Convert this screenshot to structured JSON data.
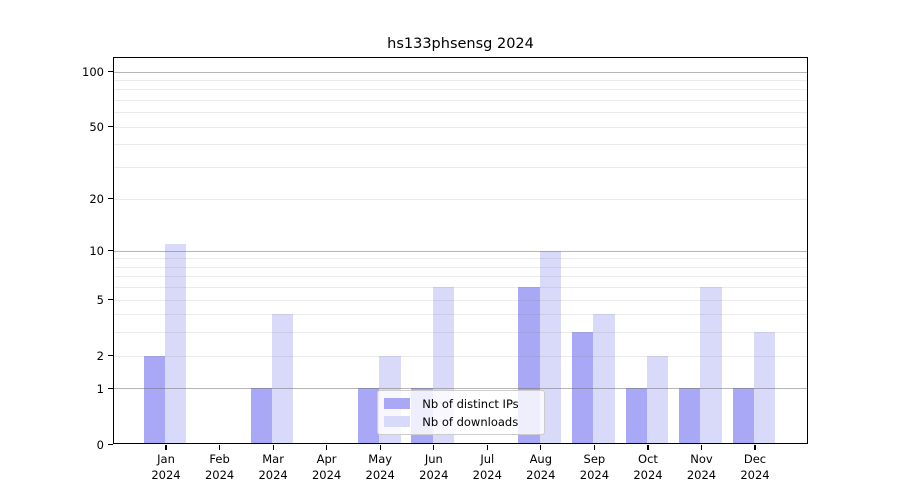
{
  "title": "hs133phsensg 2024",
  "colors": {
    "ips_bar": "#a8a8f6",
    "downloads_bar": "#d9d9fa",
    "grid_major": "#b2b2b2",
    "grid_minor": "#e9e9e9",
    "axis": "#000000",
    "legend_border": "#cccccc",
    "background": "#ffffff"
  },
  "legend": {
    "items": [
      {
        "id": "distinct-ips",
        "label": "Nb of distinct IPs"
      },
      {
        "id": "downloads",
        "label": "Nb of downloads"
      }
    ]
  },
  "y_axis": {
    "tick_labels": [
      "100",
      "50",
      "20",
      "10",
      "5",
      "2",
      "1",
      "0"
    ],
    "tick_values": [
      100,
      50,
      20,
      10,
      5,
      2,
      1,
      0
    ],
    "major_values": [
      1,
      10,
      100
    ],
    "minor_values": [
      3,
      4,
      6,
      7,
      8,
      9,
      30,
      40,
      60,
      70,
      80,
      90
    ]
  },
  "x_axis": {
    "months": [
      "Jan",
      "Feb",
      "Mar",
      "Apr",
      "May",
      "Jun",
      "Jul",
      "Aug",
      "Sep",
      "Oct",
      "Nov",
      "Dec"
    ],
    "year": "2024"
  },
  "chart_data": {
    "type": "bar",
    "title": "hs133phsensg 2024",
    "categories": [
      "Jan 2024",
      "Feb 2024",
      "Mar 2024",
      "Apr 2024",
      "May 2024",
      "Jun 2024",
      "Jul 2024",
      "Aug 2024",
      "Sep 2024",
      "Oct 2024",
      "Nov 2024",
      "Dec 2024"
    ],
    "series": [
      {
        "name": "Nb of distinct IPs",
        "values": [
          2,
          0,
          1,
          0,
          1,
          1,
          0,
          6,
          3,
          1,
          1,
          1
        ]
      },
      {
        "name": "Nb of downloads",
        "values": [
          11,
          0,
          4,
          0,
          2,
          6,
          0,
          10,
          4,
          2,
          6,
          3
        ]
      }
    ],
    "xlabel": "",
    "ylabel": "",
    "ylim": [
      0,
      100
    ],
    "y_ticks": [
      0,
      1,
      2,
      5,
      10,
      20,
      50,
      100
    ],
    "y_scale": "log10(1+v)",
    "grid": "horizontal",
    "legend_position": "inside lower-center"
  }
}
